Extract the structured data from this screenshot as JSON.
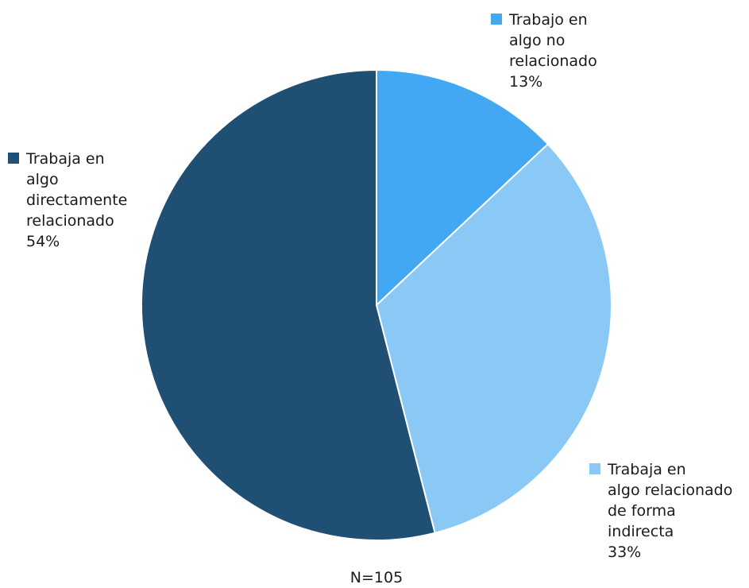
{
  "chart_data": {
    "type": "pie",
    "slices": [
      {
        "label_lines": [
          "Trabajo en",
          "algo no",
          "relacionado"
        ],
        "value": 13,
        "value_label": "13%",
        "color": "#42A8F3"
      },
      {
        "label_lines": [
          "Trabaja en",
          "algo relacionado",
          "de forma",
          "indirecta"
        ],
        "value": 33,
        "value_label": "33%",
        "color": "#8AC8F5"
      },
      {
        "label_lines": [
          "Trabaja en",
          "algo",
          "directamente",
          "relacionado"
        ],
        "value": 54,
        "value_label": "54%",
        "color": "#1F5073"
      }
    ],
    "note": "N=105"
  }
}
